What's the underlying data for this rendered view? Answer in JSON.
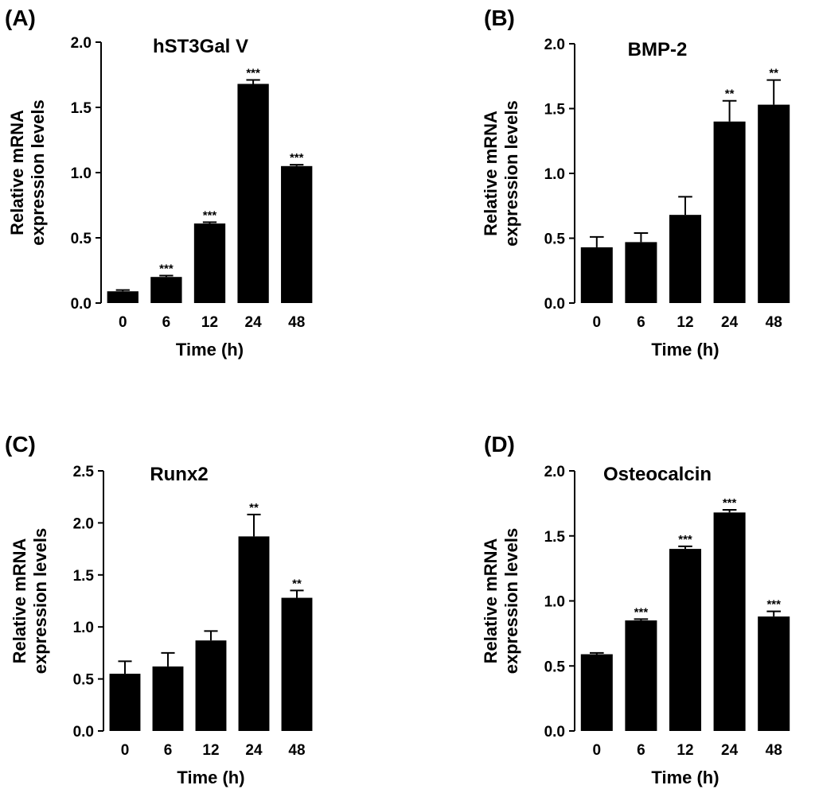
{
  "chart_data": [
    {
      "type": "bar",
      "panel": "(A)",
      "title": "hST3Gal V",
      "ylabel": [
        "Relative mRNA",
        "expression levels"
      ],
      "xlabel": "Time (h)",
      "categories": [
        "0",
        "6",
        "12",
        "24",
        "48"
      ],
      "values": [
        0.09,
        0.2,
        0.61,
        1.68,
        1.05
      ],
      "errors": [
        0.01,
        0.01,
        0.01,
        0.03,
        0.01
      ],
      "significance": [
        "",
        "***",
        "***",
        "***",
        "***"
      ],
      "ylim": [
        0,
        2.0
      ],
      "yticks": [
        "0.0",
        "0.5",
        "1.0",
        "1.5",
        "2.0"
      ]
    },
    {
      "type": "bar",
      "panel": "(B)",
      "title": "BMP-2",
      "ylabel": [
        "Relative mRNA",
        "expression levels"
      ],
      "xlabel": "Time (h)",
      "categories": [
        "0",
        "6",
        "12",
        "24",
        "48"
      ],
      "values": [
        0.43,
        0.47,
        0.68,
        1.4,
        1.53
      ],
      "errors": [
        0.08,
        0.07,
        0.14,
        0.16,
        0.19
      ],
      "significance": [
        "",
        "",
        "",
        "**",
        "**"
      ],
      "ylim": [
        0,
        2.0
      ],
      "yticks": [
        "0.0",
        "0.5",
        "1.0",
        "1.5",
        "2.0"
      ]
    },
    {
      "type": "bar",
      "panel": "(C)",
      "title": "Runx2",
      "ylabel": [
        "Relative mRNA",
        "expression levels"
      ],
      "xlabel": "Time (h)",
      "categories": [
        "0",
        "6",
        "12",
        "24",
        "48"
      ],
      "values": [
        0.55,
        0.62,
        0.87,
        1.87,
        1.28
      ],
      "errors": [
        0.12,
        0.13,
        0.09,
        0.21,
        0.07
      ],
      "significance": [
        "",
        "",
        "",
        "**",
        "**"
      ],
      "ylim": [
        0,
        2.5
      ],
      "yticks": [
        "0.0",
        "0.5",
        "1.0",
        "1.5",
        "2.0",
        "2.5"
      ]
    },
    {
      "type": "bar",
      "panel": "(D)",
      "title": "Osteocalcin",
      "ylabel": [
        "Relative mRNA",
        "expression levels"
      ],
      "xlabel": "Time (h)",
      "categories": [
        "0",
        "6",
        "12",
        "24",
        "48"
      ],
      "values": [
        0.59,
        0.85,
        1.4,
        1.68,
        0.88
      ],
      "errors": [
        0.01,
        0.01,
        0.02,
        0.02,
        0.04
      ],
      "significance": [
        "",
        "***",
        "***",
        "***",
        "***"
      ],
      "ylim": [
        0,
        2.0
      ],
      "yticks": [
        "0.0",
        "0.5",
        "1.0",
        "1.5",
        "2.0"
      ]
    }
  ]
}
